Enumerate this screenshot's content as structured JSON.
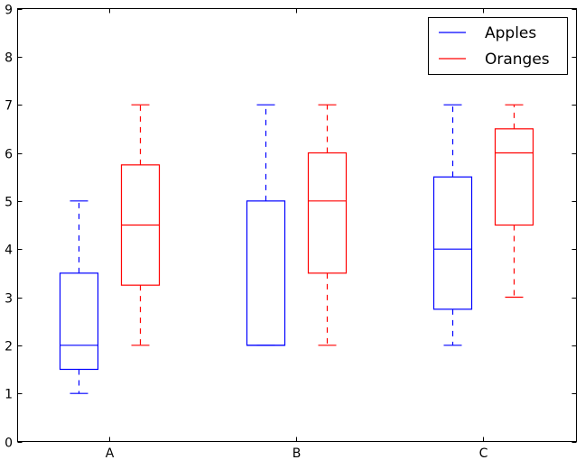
{
  "chart_data": {
    "type": "box",
    "categories": [
      "A",
      "B",
      "C"
    ],
    "ylim": [
      0,
      9
    ],
    "y_ticks": [
      0,
      1,
      2,
      3,
      4,
      5,
      6,
      7,
      8,
      9
    ],
    "grid": false,
    "legend_position": "top-right",
    "series": [
      {
        "name": "Apples",
        "color": "#0000ff",
        "boxes": [
          {
            "category": "A",
            "whisker_low": 1,
            "q1": 1.5,
            "median": 2,
            "q3": 3.5,
            "whisker_high": 5
          },
          {
            "category": "B",
            "whisker_low": 2,
            "q1": 2,
            "median": 2,
            "q3": 5,
            "whisker_high": 7
          },
          {
            "category": "C",
            "whisker_low": 2,
            "q1": 2.75,
            "median": 4,
            "q3": 5.5,
            "whisker_high": 7
          }
        ]
      },
      {
        "name": "Oranges",
        "color": "#ff0000",
        "boxes": [
          {
            "category": "A",
            "whisker_low": 2,
            "q1": 3.25,
            "median": 4.5,
            "q3": 5.75,
            "whisker_high": 7
          },
          {
            "category": "B",
            "whisker_low": 2,
            "q1": 3.5,
            "median": 5,
            "q3": 6,
            "whisker_high": 7
          },
          {
            "category": "C",
            "whisker_low": 3,
            "q1": 4.5,
            "median": 6,
            "q3": 6.5,
            "whisker_high": 7
          }
        ]
      }
    ]
  }
}
